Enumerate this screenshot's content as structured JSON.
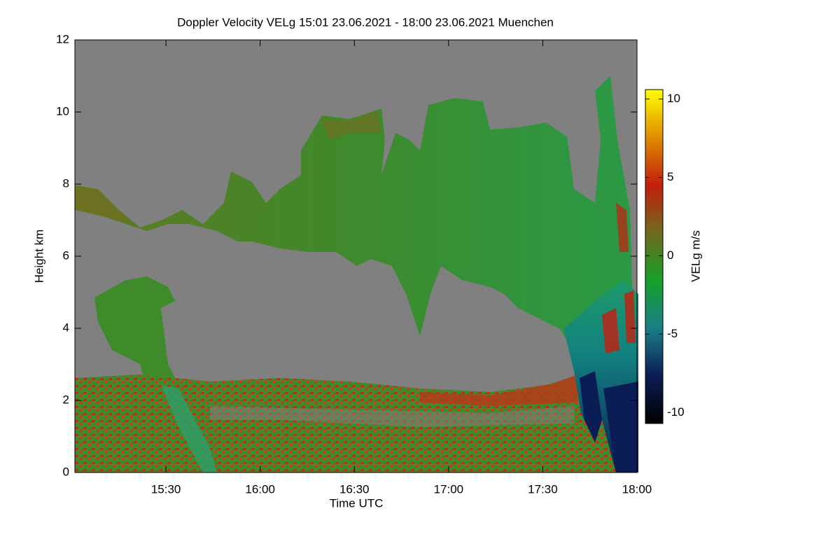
{
  "chart_data": {
    "type": "heatmap",
    "title": "Doppler Velocity VELg   15:01 23.06.2021 - 18:00 23.06.2021 Muenchen",
    "x_label": "Time UTC",
    "y_label": "Height km",
    "xlim": [
      901,
      1080
    ],
    "xticks": [
      {
        "value": 930,
        "label": "15:30"
      },
      {
        "value": 960,
        "label": "16:00"
      },
      {
        "value": 990,
        "label": "16:30"
      },
      {
        "value": 1020,
        "label": "17:00"
      },
      {
        "value": 1050,
        "label": "17:30"
      },
      {
        "value": 1080,
        "label": "18:00"
      }
    ],
    "ylim": [
      0,
      12
    ],
    "yticks": [
      0,
      2,
      4,
      6,
      8,
      10,
      12
    ],
    "colorbar": {
      "label": "VELg m/s",
      "lim": [
        -10.7,
        10.6
      ],
      "ticks": [
        -10,
        -5,
        0,
        5,
        10
      ],
      "colormap": [
        "#000000",
        "#0b1d55",
        "#1a7f86",
        "#16a02a",
        "#6e6a1c",
        "#c41e0e",
        "#e08c00",
        "#ffff00"
      ]
    }
  }
}
